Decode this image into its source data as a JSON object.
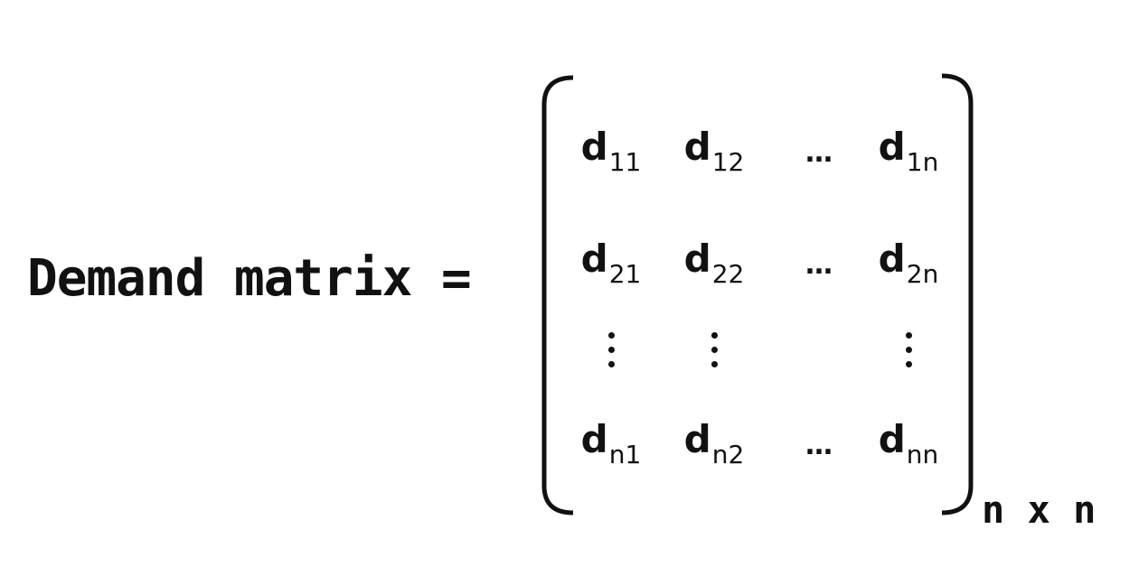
{
  "lhs_label": "Demand matrix =",
  "matrix": {
    "base_letter": "d",
    "rows": [
      [
        "11",
        "12",
        "…",
        "1n"
      ],
      [
        "21",
        "22",
        "…",
        "2n"
      ],
      [
        "⋮",
        "⋮",
        "",
        "⋮"
      ],
      [
        "n1",
        "n2",
        "…",
        "nn"
      ]
    ],
    "size_label": "n x n"
  }
}
